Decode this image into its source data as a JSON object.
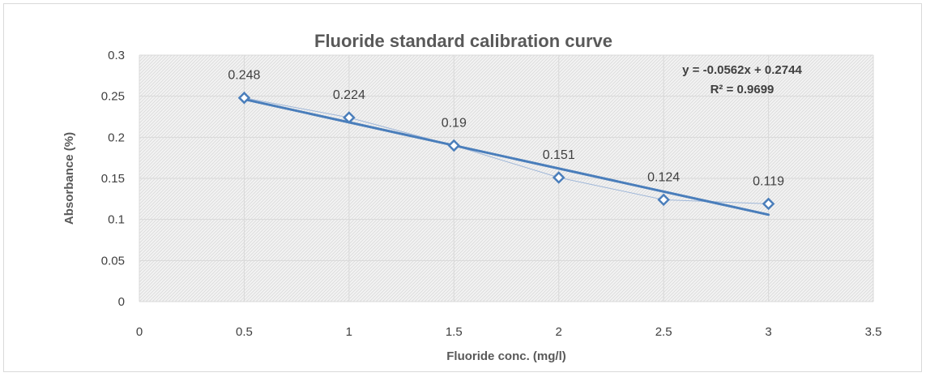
{
  "chart_data": {
    "type": "scatter",
    "title": "Fluoride standard calibration curve",
    "xlabel": "Fluoride conc. (mg/l)",
    "ylabel": "Absorbance (%)",
    "xlim": [
      0,
      3.5
    ],
    "ylim": [
      0,
      0.3
    ],
    "x_ticks": [
      "0",
      "0.5",
      "1",
      "1.5",
      "2",
      "2.5",
      "3",
      "3.5"
    ],
    "y_ticks": [
      "0",
      "0.05",
      "0.1",
      "0.15",
      "0.2",
      "0.25",
      "0.3"
    ],
    "grid": true,
    "plot_pattern": "diagonal-hatch",
    "series": [
      {
        "x": [
          0.5,
          1,
          1.5,
          2,
          2.5,
          3
        ],
        "y": [
          0.248,
          0.224,
          0.19,
          0.151,
          0.124,
          0.119
        ],
        "data_labels": [
          "0.248",
          "0.224",
          "0.19",
          "0.151",
          "0.124",
          "0.119"
        ],
        "marker": "diamond",
        "marker_color": "#4a7ebb",
        "connector_color": "#9fb7d9"
      }
    ],
    "trendline": {
      "type": "linear",
      "slope": -0.0562,
      "intercept": 0.2744,
      "x_range": [
        0.5,
        3
      ],
      "color": "#4a7ebb",
      "equation": "y = -0.0562x + 0.2744",
      "r_squared": "R² = 0.9699"
    }
  }
}
